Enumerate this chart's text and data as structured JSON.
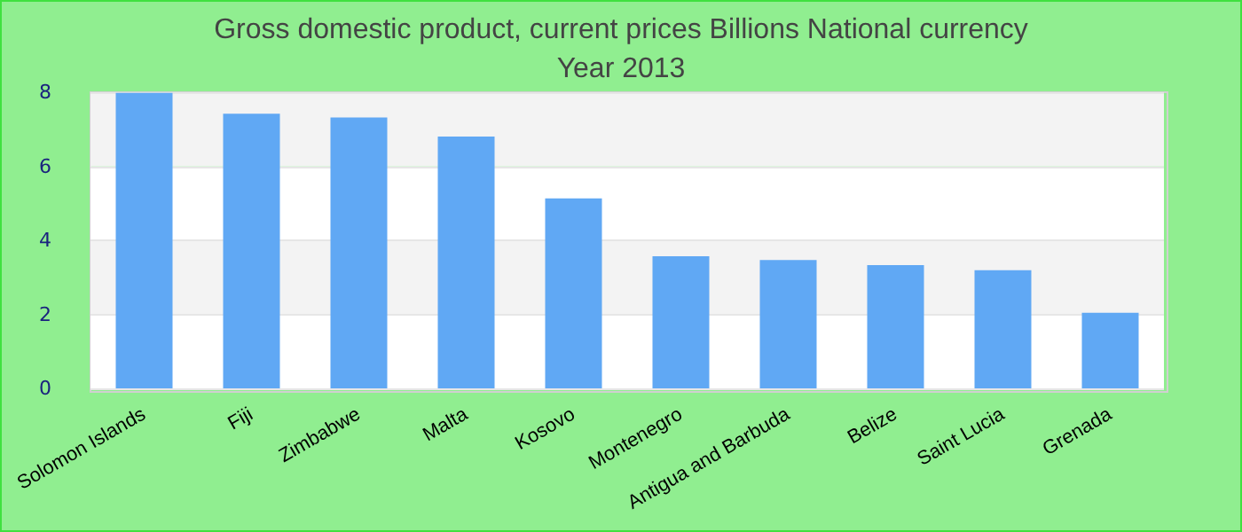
{
  "chart_data": {
    "type": "bar",
    "title": "Gross domestic product, current prices Billions National currency",
    "subtitle": "Year 2013",
    "categories": [
      "Solomon Islands",
      "Fiji",
      "Zimbabwe",
      "Malta",
      "Kosovo",
      "Montenegro",
      "Antigua and Barbuda",
      "Belize",
      "Saint Lucia",
      "Grenada"
    ],
    "values": [
      7.98,
      7.42,
      7.32,
      6.8,
      5.13,
      3.57,
      3.47,
      3.33,
      3.19,
      2.04
    ],
    "color": "#60a8f4",
    "ylim": [
      0,
      8
    ],
    "yticks": [
      0,
      2,
      4,
      6,
      8
    ],
    "grid": "y"
  }
}
